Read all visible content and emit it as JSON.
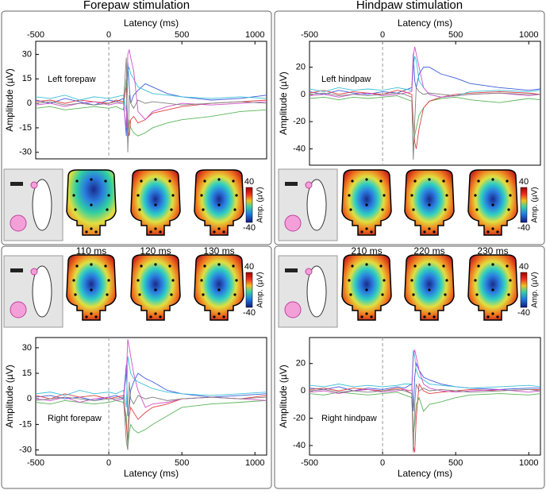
{
  "columns": [
    {
      "title": "Forepaw stimulation",
      "times": [
        "110 ms",
        "120 ms",
        "130 ms"
      ]
    },
    {
      "title": "Hindpaw stimulation",
      "times": [
        "210 ms",
        "220 ms",
        "230 ms"
      ]
    }
  ],
  "chart_data": [
    {
      "type": "line",
      "label": "Left forepaw",
      "xlabel": "Latency (ms)",
      "ylabel": "Amplitude (µV)",
      "xaxis": "top",
      "xlim": [
        -500,
        1080
      ],
      "xticks": [
        -500,
        0,
        500,
        1000
      ],
      "ylim": [
        -34,
        38
      ],
      "yticks": [
        -30,
        -15,
        0,
        15,
        30
      ],
      "onset": 0,
      "colorbar_ticks": [
        40,
        -40
      ],
      "colorbar_label": "Amp. (µV)",
      "x": [
        -500,
        -400,
        -300,
        -200,
        -100,
        0,
        50,
        100,
        120,
        130,
        140,
        150,
        170,
        200,
        250,
        300,
        400,
        500,
        700,
        900,
        1080
      ],
      "series": [
        {
          "color": "#3b5bdb",
          "values": [
            2,
            0,
            3,
            1,
            -1,
            2,
            1,
            3,
            -20,
            25,
            10,
            0,
            5,
            8,
            12,
            10,
            6,
            4,
            2,
            3,
            5
          ]
        },
        {
          "color": "#5ab45a",
          "values": [
            -3,
            -2,
            -4,
            -3,
            -2,
            -3,
            -2,
            -4,
            15,
            -25,
            -10,
            -15,
            -18,
            -20,
            -18,
            -15,
            -12,
            -10,
            -8,
            -5,
            -4
          ]
        },
        {
          "color": "#e04040",
          "values": [
            1,
            2,
            0,
            2,
            1,
            0,
            2,
            1,
            10,
            -15,
            -20,
            -10,
            -8,
            -12,
            -10,
            -6,
            -4,
            -2,
            0,
            1,
            2
          ]
        },
        {
          "color": "#3cc0d8",
          "values": [
            4,
            3,
            5,
            2,
            4,
            3,
            4,
            5,
            -5,
            20,
            22,
            18,
            15,
            10,
            8,
            6,
            5,
            4,
            3,
            4,
            3
          ]
        },
        {
          "color": "#d050c8",
          "values": [
            -1,
            0,
            -2,
            0,
            1,
            -1,
            0,
            0,
            -15,
            30,
            33,
            28,
            20,
            -5,
            -10,
            -5,
            -2,
            0,
            -1,
            0,
            1
          ]
        },
        {
          "color": "#808080",
          "values": [
            0,
            1,
            -1,
            0,
            -1,
            0,
            1,
            0,
            28,
            -30,
            5,
            0,
            -3,
            2,
            0,
            1,
            0,
            -1,
            0,
            1,
            0
          ]
        }
      ]
    },
    {
      "type": "line",
      "label": "Left hindpaw",
      "xlabel": "Latency (ms)",
      "ylabel": "Amplitude (µV)",
      "xaxis": "top",
      "xlim": [
        -500,
        1080
      ],
      "xticks": [
        -500,
        0,
        500,
        1000
      ],
      "ylim": [
        -52,
        39
      ],
      "yticks": [
        -40,
        -20,
        0,
        20
      ],
      "onset": 0,
      "colorbar_ticks": [
        40,
        -40
      ],
      "colorbar_label": "Amp. (µV)",
      "x": [
        -500,
        -400,
        -300,
        -200,
        -100,
        0,
        100,
        150,
        200,
        210,
        220,
        230,
        250,
        280,
        320,
        400,
        500,
        600,
        800,
        1000,
        1080
      ],
      "series": [
        {
          "color": "#3b5bdb",
          "values": [
            2,
            0,
            3,
            1,
            0,
            2,
            1,
            3,
            5,
            30,
            10,
            5,
            15,
            20,
            20,
            15,
            12,
            8,
            5,
            3,
            4
          ]
        },
        {
          "color": "#5ab45a",
          "values": [
            -3,
            -2,
            -4,
            -2,
            -3,
            -2,
            -1,
            -3,
            -5,
            -40,
            -30,
            -25,
            -15,
            -10,
            -5,
            -3,
            -2,
            -4,
            -6,
            -3,
            -4
          ]
        },
        {
          "color": "#e04040",
          "values": [
            1,
            3,
            0,
            2,
            1,
            0,
            3,
            2,
            0,
            -20,
            -35,
            -40,
            -25,
            -10,
            -5,
            -2,
            0,
            1,
            2,
            1,
            0
          ]
        },
        {
          "color": "#3cc0d8",
          "values": [
            4,
            2,
            5,
            3,
            4,
            3,
            5,
            4,
            3,
            20,
            28,
            25,
            10,
            5,
            0,
            -2,
            -1,
            2,
            3,
            2,
            3
          ]
        },
        {
          "color": "#d050c8",
          "values": [
            -1,
            0,
            -2,
            0,
            1,
            -1,
            0,
            1,
            2,
            28,
            35,
            30,
            20,
            5,
            0,
            -2,
            -1,
            0,
            1,
            -1,
            0
          ]
        },
        {
          "color": "#808080",
          "values": [
            0,
            1,
            -1,
            0,
            -1,
            0,
            1,
            0,
            -2,
            -48,
            -20,
            5,
            2,
            0,
            1,
            0,
            -1,
            0,
            1,
            0,
            0
          ]
        }
      ]
    },
    {
      "type": "line",
      "label": "Right forepaw",
      "xlabel": "Latency (ms)",
      "ylabel": "Amplitude (µV)",
      "xaxis": "bottom",
      "xlim": [
        -500,
        1080
      ],
      "xticks": [
        -500,
        0,
        500,
        1000
      ],
      "ylim": [
        -33,
        36
      ],
      "yticks": [
        -30,
        -15,
        0,
        15,
        30
      ],
      "onset": 0,
      "colorbar_ticks": [
        40,
        -40
      ],
      "colorbar_label": "Amp. (µV)",
      "x": [
        -500,
        -400,
        -300,
        -200,
        -100,
        0,
        50,
        100,
        120,
        130,
        140,
        150,
        170,
        200,
        250,
        300,
        400,
        500,
        700,
        900,
        1080
      ],
      "series": [
        {
          "color": "#3b5bdb",
          "values": [
            1,
            2,
            0,
            1,
            -1,
            1,
            2,
            0,
            20,
            -10,
            -5,
            5,
            10,
            15,
            12,
            10,
            5,
            3,
            1,
            2,
            3
          ]
        },
        {
          "color": "#5ab45a",
          "values": [
            -2,
            -3,
            -1,
            -2,
            -3,
            -2,
            -1,
            -2,
            -10,
            -28,
            -20,
            -15,
            -18,
            -20,
            -18,
            -15,
            -10,
            -5,
            -3,
            -2,
            -1
          ]
        },
        {
          "color": "#e04040",
          "values": [
            2,
            0,
            3,
            1,
            2,
            0,
            1,
            2,
            -15,
            -25,
            -10,
            -5,
            -8,
            -12,
            -8,
            -5,
            -3,
            0,
            1,
            0,
            2
          ]
        },
        {
          "color": "#3cc0d8",
          "values": [
            3,
            4,
            2,
            5,
            3,
            4,
            3,
            5,
            -5,
            25,
            20,
            15,
            12,
            10,
            8,
            6,
            4,
            3,
            2,
            3,
            4
          ]
        },
        {
          "color": "#d050c8",
          "values": [
            0,
            -1,
            1,
            -2,
            0,
            1,
            -1,
            0,
            15,
            35,
            30,
            25,
            15,
            5,
            -5,
            -3,
            -2,
            0,
            1,
            0,
            -1
          ]
        },
        {
          "color": "#808080",
          "values": [
            -1,
            0,
            1,
            0,
            -1,
            0,
            0,
            1,
            -25,
            -30,
            10,
            0,
            -3,
            2,
            0,
            1,
            -1,
            0,
            1,
            0,
            1
          ]
        }
      ]
    },
    {
      "type": "line",
      "label": "Right hindpaw",
      "xlabel": "Latency (ms)",
      "ylabel": "Amplitude (µV)",
      "xaxis": "bottom",
      "xlim": [
        -500,
        1080
      ],
      "xticks": [
        -500,
        0,
        500,
        1000
      ],
      "ylim": [
        -47,
        39
      ],
      "yticks": [
        -40,
        -20,
        0,
        20
      ],
      "onset": 0,
      "colorbar_ticks": [
        40,
        -40
      ],
      "colorbar_label": "Amp. (µV)",
      "x": [
        -500,
        -400,
        -300,
        -200,
        -100,
        0,
        100,
        150,
        200,
        210,
        220,
        230,
        250,
        280,
        320,
        400,
        500,
        600,
        800,
        1000,
        1080
      ],
      "series": [
        {
          "color": "#3b5bdb",
          "values": [
            2,
            1,
            3,
            0,
            2,
            1,
            3,
            2,
            5,
            -15,
            10,
            20,
            15,
            10,
            8,
            5,
            3,
            2,
            1,
            2,
            2
          ]
        },
        {
          "color": "#5ab45a",
          "values": [
            -2,
            -3,
            -1,
            -2,
            -3,
            -2,
            -1,
            -3,
            -5,
            -30,
            -25,
            -10,
            -5,
            -15,
            -10,
            -8,
            -5,
            -3,
            -2,
            -3,
            -2
          ]
        },
        {
          "color": "#e04040",
          "values": [
            1,
            2,
            0,
            2,
            1,
            0,
            2,
            1,
            -2,
            -40,
            -45,
            -20,
            5,
            0,
            -2,
            -1,
            0,
            1,
            0,
            1,
            1
          ]
        },
        {
          "color": "#3cc0d8",
          "values": [
            4,
            3,
            5,
            3,
            4,
            3,
            4,
            5,
            5,
            30,
            25,
            15,
            10,
            8,
            5,
            4,
            3,
            2,
            3,
            4,
            3
          ]
        },
        {
          "color": "#d050c8",
          "values": [
            -1,
            0,
            -2,
            0,
            1,
            -1,
            0,
            1,
            0,
            25,
            30,
            25,
            15,
            5,
            2,
            0,
            -1,
            0,
            1,
            -1,
            0
          ]
        },
        {
          "color": "#808080",
          "values": [
            0,
            1,
            -1,
            0,
            -1,
            0,
            1,
            0,
            -2,
            -45,
            -10,
            5,
            0,
            2,
            0,
            1,
            0,
            -1,
            0,
            1,
            0
          ]
        }
      ]
    }
  ]
}
